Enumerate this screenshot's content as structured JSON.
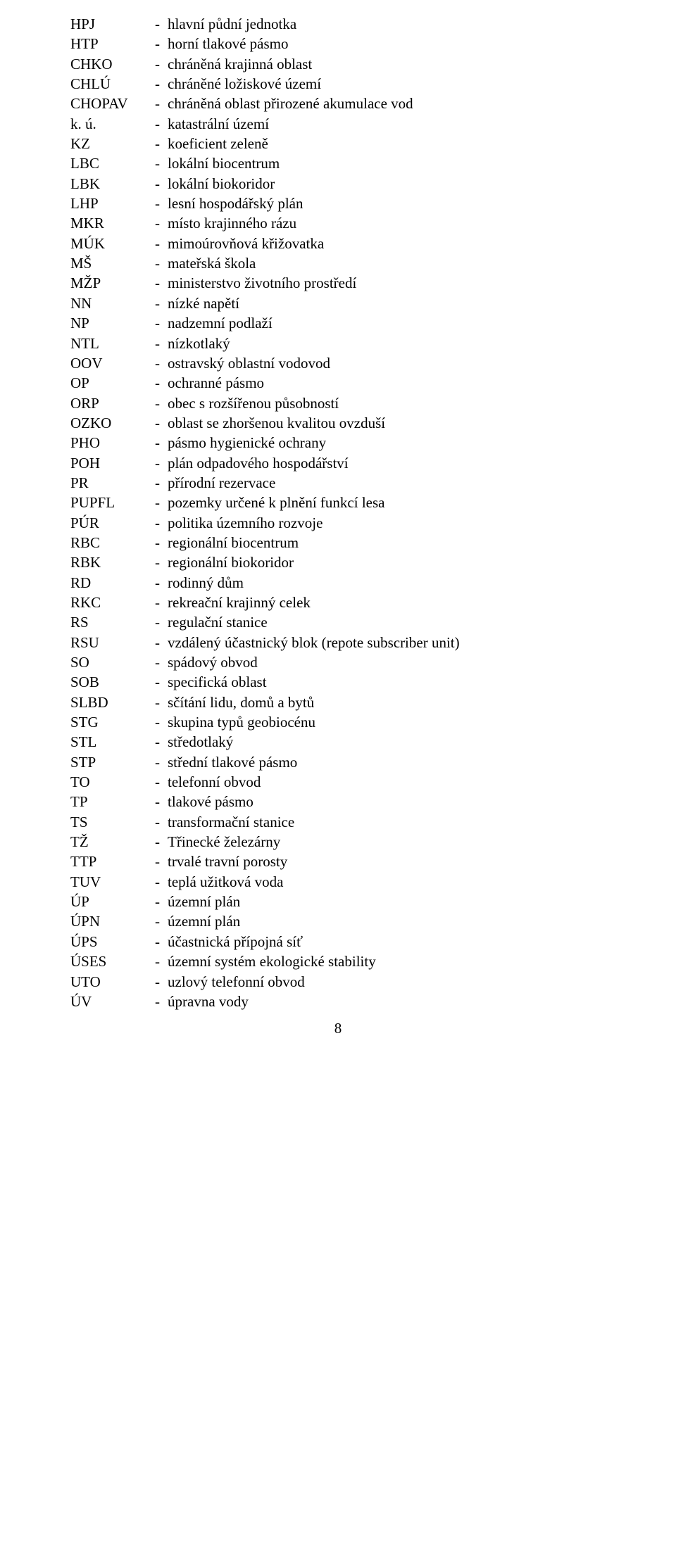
{
  "dash": "-",
  "page_number": "8",
  "entries": [
    {
      "abbr": "HPJ",
      "def": "hlavní půdní jednotka"
    },
    {
      "abbr": "HTP",
      "def": "horní tlakové pásmo"
    },
    {
      "abbr": "CHKO",
      "def": "chráněná krajinná oblast"
    },
    {
      "abbr": "CHLÚ",
      "def": "chráněné ložiskové území"
    },
    {
      "abbr": "CHOPAV",
      "def": "chráněná oblast přirozené akumulace vod"
    },
    {
      "abbr": "k. ú.",
      "def": "katastrální území"
    },
    {
      "abbr": "KZ",
      "def": "koeficient zeleně"
    },
    {
      "abbr": "LBC",
      "def": "lokální biocentrum"
    },
    {
      "abbr": "LBK",
      "def": "lokální biokoridor"
    },
    {
      "abbr": "LHP",
      "def": "lesní hospodářský plán"
    },
    {
      "abbr": "MKR",
      "def": "místo krajinného rázu"
    },
    {
      "abbr": "MÚK",
      "def": "mimoúrovňová křižovatka"
    },
    {
      "abbr": "MŠ",
      "def": "mateřská škola"
    },
    {
      "abbr": "MŽP",
      "def": "ministerstvo životního prostředí"
    },
    {
      "abbr": "NN",
      "def": "nízké napětí"
    },
    {
      "abbr": "NP",
      "def": "nadzemní podlaží"
    },
    {
      "abbr": "NTL",
      "def": "nízkotlaký"
    },
    {
      "abbr": "OOV",
      "def": "ostravský oblastní vodovod"
    },
    {
      "abbr": "OP",
      "def": "ochranné pásmo"
    },
    {
      "abbr": "ORP",
      "def": "obec s rozšířenou působností"
    },
    {
      "abbr": "OZKO",
      "def": "oblast se zhoršenou kvalitou ovzduší"
    },
    {
      "abbr": "PHO",
      "def": "pásmo hygienické ochrany"
    },
    {
      "abbr": "POH",
      "def": "plán odpadového hospodářství"
    },
    {
      "abbr": "PR",
      "def": "přírodní rezervace"
    },
    {
      "abbr": "PUPFL",
      "def": "pozemky určené k plnění funkcí lesa"
    },
    {
      "abbr": "PÚR",
      "def": "politika územního rozvoje"
    },
    {
      "abbr": "RBC",
      "def": "regionální biocentrum"
    },
    {
      "abbr": "RBK",
      "def": "regionální biokoridor"
    },
    {
      "abbr": "RD",
      "def": "rodinný dům"
    },
    {
      "abbr": "RKC",
      "def": "rekreační krajinný celek"
    },
    {
      "abbr": "RS",
      "def": "regulační stanice"
    },
    {
      "abbr": "RSU",
      "def": "vzdálený účastnický blok (repote subscriber unit)"
    },
    {
      "abbr": "SO",
      "def": "spádový obvod"
    },
    {
      "abbr": "SOB",
      "def": "specifická oblast"
    },
    {
      "abbr": "SLBD",
      "def": "sčítání lidu, domů a bytů"
    },
    {
      "abbr": "STG",
      "def": "skupina typů geobiocénu"
    },
    {
      "abbr": "STL",
      "def": "středotlaký"
    },
    {
      "abbr": "STP",
      "def": "střední tlakové pásmo"
    },
    {
      "abbr": "TO",
      "def": "telefonní obvod"
    },
    {
      "abbr": "TP",
      "def": "tlakové pásmo"
    },
    {
      "abbr": "TS",
      "def": "transformační stanice"
    },
    {
      "abbr": "TŽ",
      "def": "Třinecké železárny"
    },
    {
      "abbr": "TTP",
      "def": "trvalé travní porosty"
    },
    {
      "abbr": "TUV",
      "def": "teplá užitková voda"
    },
    {
      "abbr": "ÚP",
      "def": "územní plán"
    },
    {
      "abbr": "ÚPN",
      "def": "územní plán"
    },
    {
      "abbr": "ÚPS",
      "def": "účastnická přípojná síť"
    },
    {
      "abbr": "ÚSES",
      "def": "územní systém ekologické stability"
    },
    {
      "abbr": "UTO",
      "def": "uzlový telefonní obvod"
    },
    {
      "abbr": "ÚV",
      "def": "úpravna vody"
    }
  ]
}
